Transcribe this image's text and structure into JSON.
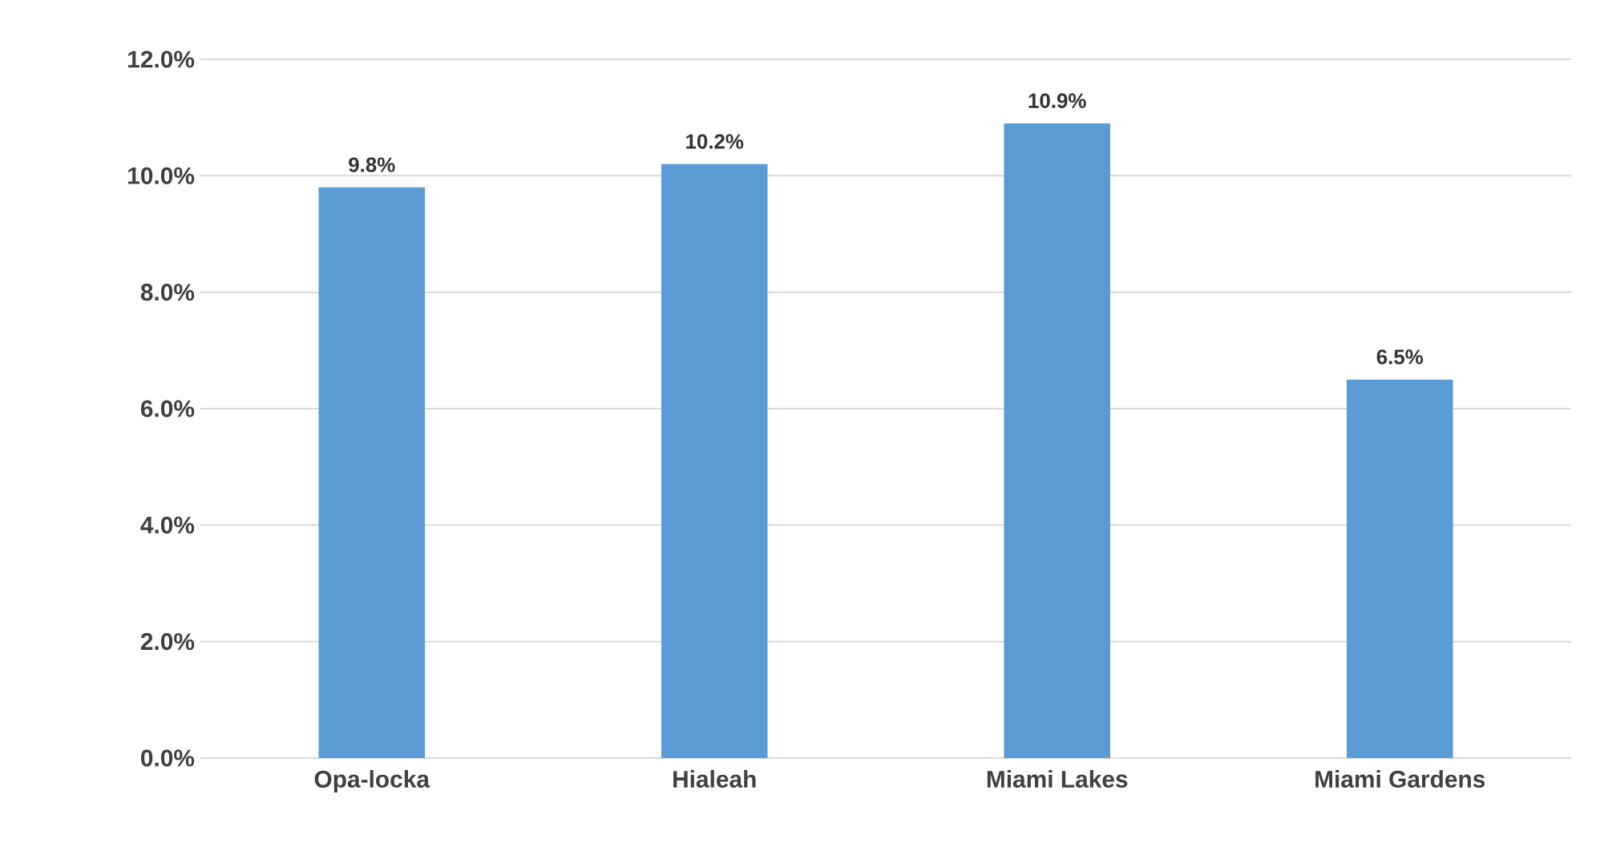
{
  "chart_data": {
    "type": "bar",
    "categories": [
      "Opa-locka",
      "Hialeah",
      "Miami Lakes",
      "Miami Gardens"
    ],
    "values": [
      9.8,
      10.2,
      10.9,
      6.5
    ],
    "value_labels": [
      "9.8%",
      "10.2%",
      "10.9%",
      "6.5%"
    ],
    "color": "#5b9bd5",
    "ylim": [
      0,
      12
    ],
    "yticks": [
      {
        "value": 0,
        "label": "0.0%"
      },
      {
        "value": 2,
        "label": "2.0%"
      },
      {
        "value": 4,
        "label": "4.0%"
      },
      {
        "value": 6,
        "label": "6.0%"
      },
      {
        "value": 8,
        "label": "8.0%"
      },
      {
        "value": 10,
        "label": "10.0%"
      },
      {
        "value": 12,
        "label": "12.0%"
      }
    ],
    "grid": "y"
  }
}
